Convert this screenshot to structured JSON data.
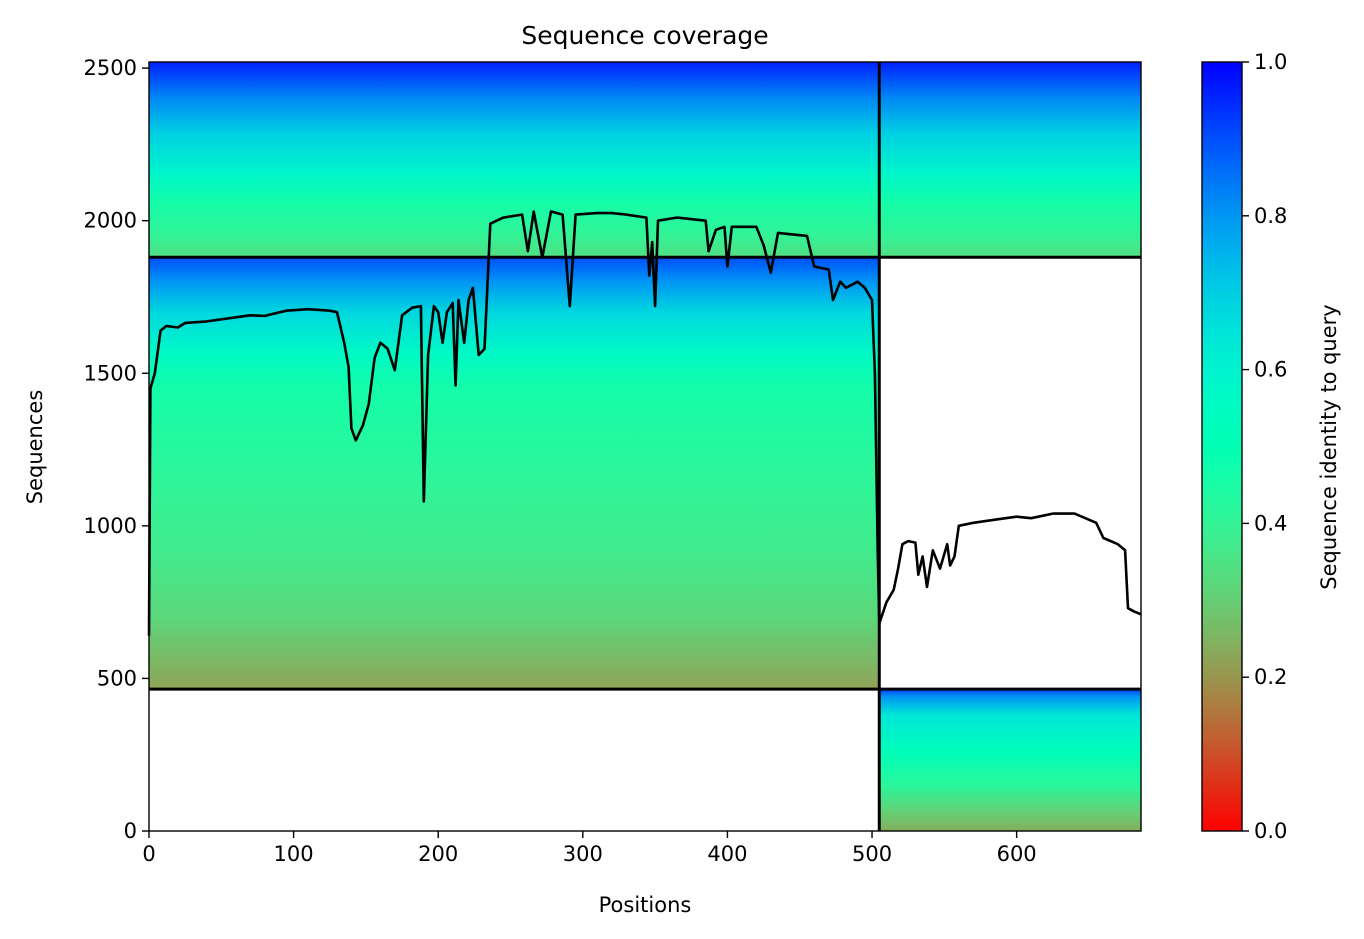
{
  "chart_data": {
    "type": "heatmap",
    "title": "Sequence coverage",
    "xlabel": "Positions",
    "ylabel": "Sequences",
    "xlim": [
      0,
      686
    ],
    "ylim": [
      0,
      2520
    ],
    "xticks": [
      0,
      100,
      200,
      300,
      400,
      500,
      600
    ],
    "yticks": [
      0,
      500,
      1000,
      1500,
      2000,
      2500
    ],
    "grid": false,
    "colorbar": {
      "label": "Sequence identity to query",
      "colormap": "rainbow",
      "range": [
        0.0,
        1.0
      ],
      "ticks": [
        0.0,
        0.2,
        0.4,
        0.6,
        0.8,
        1.0
      ]
    },
    "chain_boundaries": {
      "positions": [
        505
      ],
      "sequences": [
        465,
        1880
      ]
    },
    "blocks": [
      {
        "region": "chain-1-only",
        "x_range": [
          0,
          505
        ],
        "seq_range": [
          465,
          1880
        ],
        "identity_stops": [
          {
            "seq": 465,
            "identity": 0.22
          },
          {
            "seq": 540,
            "identity": 0.25
          },
          {
            "seq": 700,
            "identity": 0.32
          },
          {
            "seq": 900,
            "identity": 0.37
          },
          {
            "seq": 1150,
            "identity": 0.41
          },
          {
            "seq": 1450,
            "identity": 0.46
          },
          {
            "seq": 1560,
            "identity": 0.56
          },
          {
            "seq": 1700,
            "identity": 0.68
          },
          {
            "seq": 1800,
            "identity": 0.8
          },
          {
            "seq": 1880,
            "identity": 0.9
          }
        ]
      },
      {
        "region": "paired",
        "x_range": [
          0,
          686
        ],
        "seq_range": [
          1880,
          2520
        ],
        "identity_stops": [
          {
            "seq": 1880,
            "identity": 0.34
          },
          {
            "seq": 1950,
            "identity": 0.4
          },
          {
            "seq": 2060,
            "identity": 0.46
          },
          {
            "seq": 2150,
            "identity": 0.58
          },
          {
            "seq": 2290,
            "identity": 0.7
          },
          {
            "seq": 2400,
            "identity": 0.82
          },
          {
            "seq": 2520,
            "identity": 0.96
          }
        ]
      },
      {
        "region": "chain-2-only",
        "x_range": [
          505,
          686
        ],
        "seq_range": [
          0,
          465
        ],
        "identity_stops": [
          {
            "seq": 0,
            "identity": 0.24
          },
          {
            "seq": 60,
            "identity": 0.3
          },
          {
            "seq": 150,
            "identity": 0.42
          },
          {
            "seq": 260,
            "identity": 0.52
          },
          {
            "seq": 380,
            "identity": 0.64
          },
          {
            "seq": 440,
            "identity": 0.8
          },
          {
            "seq": 465,
            "identity": 0.92
          }
        ]
      }
    ],
    "coverage_line": [
      [
        0,
        640
      ],
      [
        1,
        1450
      ],
      [
        4,
        1500
      ],
      [
        8,
        1640
      ],
      [
        12,
        1655
      ],
      [
        20,
        1650
      ],
      [
        25,
        1665
      ],
      [
        40,
        1670
      ],
      [
        55,
        1680
      ],
      [
        70,
        1690
      ],
      [
        80,
        1688
      ],
      [
        95,
        1705
      ],
      [
        110,
        1710
      ],
      [
        125,
        1705
      ],
      [
        130,
        1700
      ],
      [
        135,
        1600
      ],
      [
        138,
        1520
      ],
      [
        140,
        1320
      ],
      [
        143,
        1280
      ],
      [
        148,
        1330
      ],
      [
        152,
        1400
      ],
      [
        156,
        1550
      ],
      [
        160,
        1600
      ],
      [
        165,
        1580
      ],
      [
        170,
        1510
      ],
      [
        175,
        1690
      ],
      [
        182,
        1715
      ],
      [
        188,
        1720
      ],
      [
        190,
        1080
      ],
      [
        193,
        1560
      ],
      [
        197,
        1720
      ],
      [
        200,
        1700
      ],
      [
        203,
        1600
      ],
      [
        206,
        1700
      ],
      [
        210,
        1730
      ],
      [
        212,
        1460
      ],
      [
        214,
        1740
      ],
      [
        218,
        1600
      ],
      [
        221,
        1740
      ],
      [
        224,
        1780
      ],
      [
        228,
        1560
      ],
      [
        232,
        1580
      ],
      [
        236,
        1990
      ],
      [
        245,
        2010
      ],
      [
        258,
        2020
      ],
      [
        262,
        1900
      ],
      [
        266,
        2030
      ],
      [
        272,
        1880
      ],
      [
        278,
        2030
      ],
      [
        286,
        2020
      ],
      [
        291,
        1720
      ],
      [
        295,
        2020
      ],
      [
        310,
        2025
      ],
      [
        320,
        2025
      ],
      [
        330,
        2020
      ],
      [
        344,
        2010
      ],
      [
        346,
        1820
      ],
      [
        348,
        1930
      ],
      [
        350,
        1720
      ],
      [
        352,
        2000
      ],
      [
        365,
        2010
      ],
      [
        385,
        2000
      ],
      [
        387,
        1900
      ],
      [
        392,
        1970
      ],
      [
        398,
        1980
      ],
      [
        400,
        1850
      ],
      [
        403,
        1980
      ],
      [
        420,
        1980
      ],
      [
        425,
        1920
      ],
      [
        430,
        1830
      ],
      [
        435,
        1960
      ],
      [
        455,
        1950
      ],
      [
        460,
        1850
      ],
      [
        470,
        1840
      ],
      [
        473,
        1740
      ],
      [
        478,
        1800
      ],
      [
        482,
        1780
      ],
      [
        490,
        1800
      ],
      [
        495,
        1780
      ],
      [
        500,
        1740
      ],
      [
        502,
        1500
      ],
      [
        504,
        900
      ],
      [
        505,
        680
      ],
      [
        510,
        750
      ],
      [
        515,
        790
      ],
      [
        518,
        860
      ],
      [
        521,
        940
      ],
      [
        525,
        950
      ],
      [
        530,
        945
      ],
      [
        532,
        840
      ],
      [
        535,
        900
      ],
      [
        538,
        800
      ],
      [
        542,
        920
      ],
      [
        547,
        860
      ],
      [
        552,
        940
      ],
      [
        554,
        870
      ],
      [
        557,
        900
      ],
      [
        560,
        1000
      ],
      [
        570,
        1010
      ],
      [
        585,
        1020
      ],
      [
        600,
        1030
      ],
      [
        610,
        1025
      ],
      [
        625,
        1040
      ],
      [
        640,
        1040
      ],
      [
        655,
        1010
      ],
      [
        660,
        960
      ],
      [
        670,
        940
      ],
      [
        675,
        920
      ],
      [
        677,
        730
      ],
      [
        681,
        720
      ],
      [
        686,
        710
      ]
    ]
  }
}
